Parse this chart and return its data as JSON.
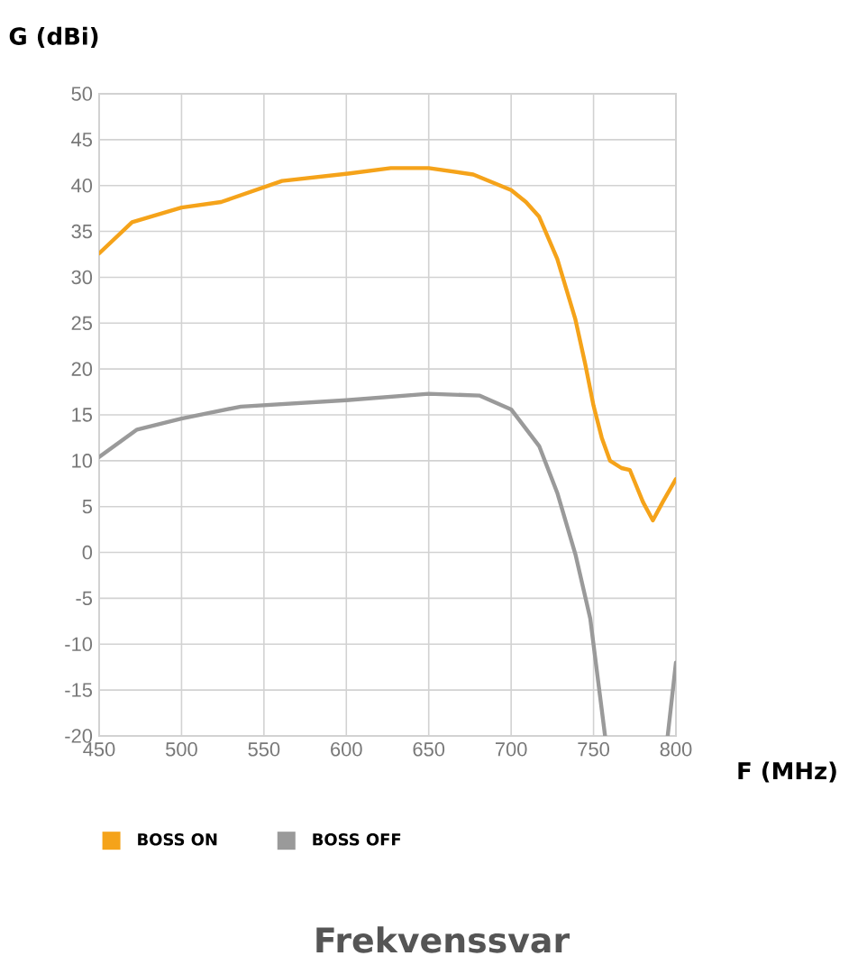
{
  "chart_data": {
    "type": "line",
    "title": "Frekvenssvar",
    "xlabel": "F (MHz)",
    "ylabel": "G (dBi)",
    "xlim": [
      450,
      800
    ],
    "ylim": [
      -20,
      50
    ],
    "xticks": [
      450,
      500,
      550,
      600,
      650,
      700,
      750,
      800
    ],
    "yticks": [
      -20,
      -15,
      -10,
      -5,
      0,
      5,
      10,
      15,
      20,
      25,
      30,
      35,
      40,
      45,
      50
    ],
    "grid": true,
    "legend": "bottom",
    "marker": "none",
    "line_style": "solid",
    "series": [
      {
        "name": "BOSS ON",
        "color": "#f5a31a",
        "x": [
          450,
          470,
          500,
          524,
          561,
          601,
          627,
          650,
          677,
          700,
          709,
          717,
          728,
          739,
          745,
          750,
          755,
          760,
          767,
          772,
          780,
          786,
          792,
          800
        ],
        "values": [
          32.6,
          36,
          37.6,
          38.2,
          40.5,
          41.3,
          41.9,
          41.9,
          41.2,
          39.5,
          38.2,
          36.6,
          32,
          25.4,
          20.5,
          16,
          12.5,
          10,
          9.2,
          9,
          5.5,
          3.5,
          5.5,
          8
        ]
      },
      {
        "name": "BOSS OFF",
        "color": "#9a9a9a",
        "x": [
          450,
          473,
          500,
          536,
          600,
          650,
          681,
          700,
          717,
          728,
          739,
          748,
          757,
          776,
          795,
          800
        ],
        "values": [
          10.4,
          13.4,
          14.6,
          15.9,
          16.6,
          17.3,
          17.1,
          15.6,
          11.6,
          6.5,
          -0.2,
          -7.2,
          -20,
          null,
          -20,
          -12
        ]
      }
    ]
  }
}
